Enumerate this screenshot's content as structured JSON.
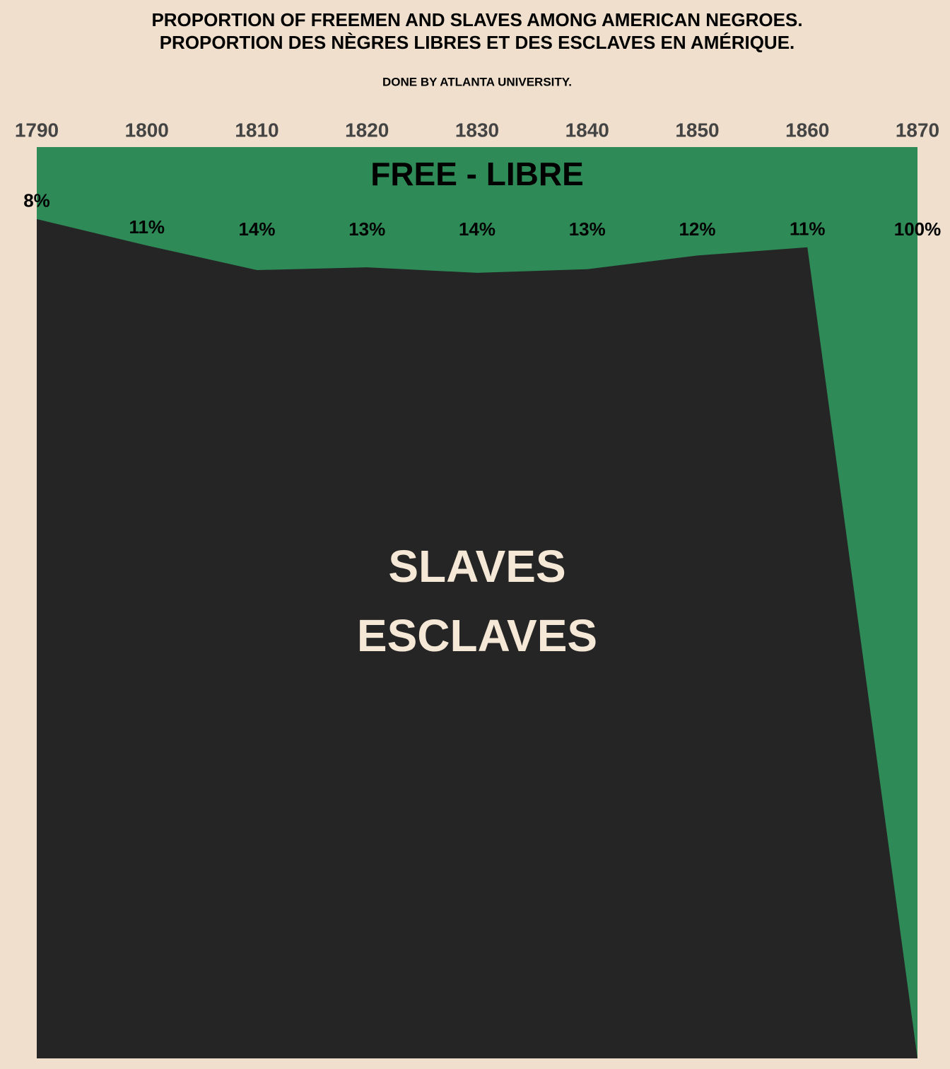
{
  "chart_data": {
    "type": "area",
    "title": "PROPORTION OF FREEMEN AND SLAVES AMONG AMERICAN NEGROES.",
    "subtitle": "PROPORTION DES NÈGRES LIBRES ET DES ESCLAVES EN AMÉRIQUE.",
    "caption": "DONE BY ATLANTA UNIVERSITY.",
    "x": [
      1790,
      1800,
      1810,
      1820,
      1830,
      1840,
      1850,
      1860,
      1870
    ],
    "xlim": [
      1790,
      1870
    ],
    "xticks": [
      1790,
      1800,
      1810,
      1820,
      1830,
      1840,
      1850,
      1860,
      1870
    ],
    "ylim": [
      0,
      100
    ],
    "series": [
      {
        "name": "FREE - LIBRE",
        "color": "#2e8b57",
        "values": [
          7.9,
          10.8,
          13.5,
          13.2,
          13.8,
          13.4,
          11.9,
          11.0,
          100
        ],
        "value_labels": [
          "8%",
          "11%",
          "14%",
          "13%",
          "14%",
          "13%",
          "12%",
          "11%",
          "100%"
        ]
      }
    ],
    "rest_label": [
      "SLAVES",
      "ESCLAVES"
    ],
    "rest_color": "#252525"
  }
}
